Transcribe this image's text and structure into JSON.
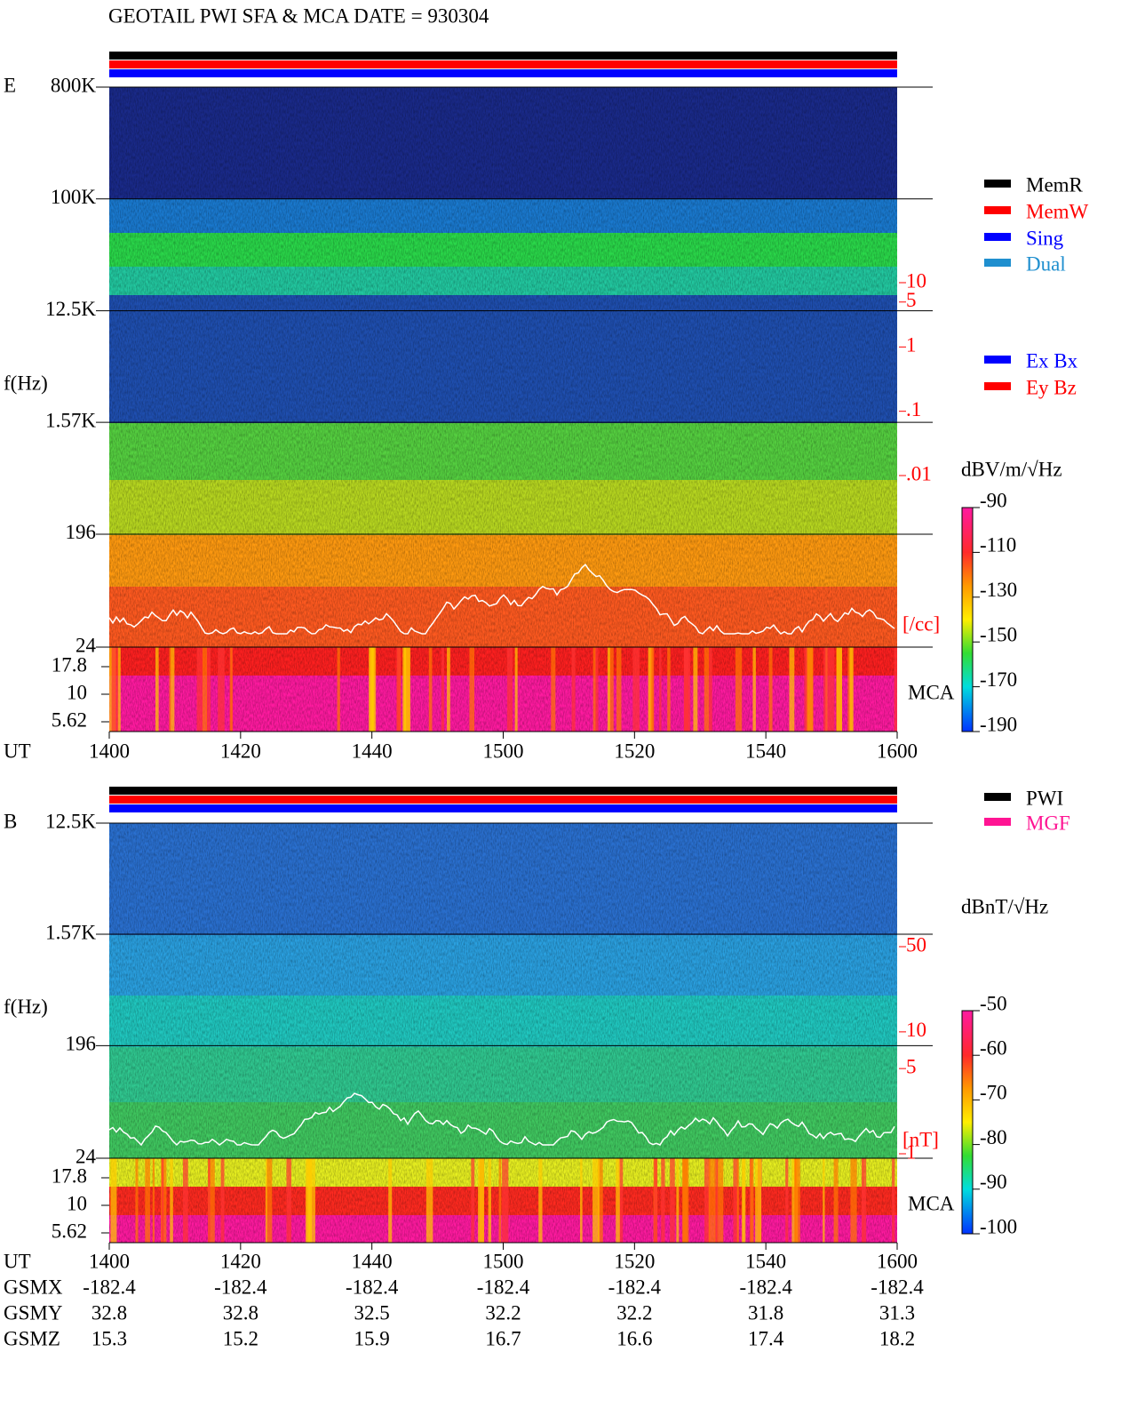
{
  "title": "GEOTAIL  PWI SFA & MCA   DATE = 930304",
  "chart_data": [
    {
      "type": "spectrogram",
      "panel_label": "E",
      "y_label": "f(Hz)",
      "x_label": "UT",
      "x": [
        "1400",
        "1420",
        "1440",
        "1500",
        "1520",
        "1540",
        "1600"
      ],
      "log_y": true,
      "ylim": [
        24,
        800000
      ],
      "yticks": [
        {
          "value": 800000,
          "label": "800K"
        },
        {
          "value": 100000,
          "label": "100K"
        },
        {
          "value": 12500,
          "label": "12.5K"
        },
        {
          "value": 1570,
          "label": "1.57K"
        },
        196,
        24
      ],
      "mca_label": "MCA",
      "mca_ticks": [
        17.8,
        10,
        5.62
      ],
      "density_lim": [
        0.01,
        10
      ],
      "density_ticks": [
        10,
        5,
        1,
        {
          "value": 0.1,
          "label": ".1"
        },
        {
          "value": 0.01,
          "label": ".01"
        }
      ],
      "density_unit": "[/cc]",
      "legend_mode": [
        {
          "name": "MemR",
          "color": "#000000"
        },
        {
          "name": "MemW",
          "color": "#ff0000"
        },
        {
          "name": "Sing",
          "color": "#0000ff"
        },
        {
          "name": "Dual",
          "color": "#1f8fcf"
        }
      ],
      "legend_antenna": [
        {
          "name": "Ex Bx",
          "color": "#0000ff"
        },
        {
          "name": "Ey Bz",
          "color": "#ff0000"
        }
      ],
      "colorbar": {
        "label": "dBV/m/√Hz",
        "lim": [
          -190,
          -90
        ],
        "ticks": [
          -90,
          -110,
          -130,
          -150,
          -170,
          -190
        ]
      }
    },
    {
      "type": "spectrogram",
      "panel_label": "B",
      "y_label": "f(Hz)",
      "x_label": "UT",
      "x": [
        "1400",
        "1420",
        "1440",
        "1500",
        "1520",
        "1540",
        "1600"
      ],
      "log_y": true,
      "ylim": [
        24,
        12500
      ],
      "yticks": [
        {
          "value": 12500,
          "label": "12.5K"
        },
        {
          "value": 1570,
          "label": "1.57K"
        },
        196,
        24
      ],
      "mca_label": "MCA",
      "mca_ticks": [
        17.8,
        10,
        5.62
      ],
      "density_lim": [
        1,
        50
      ],
      "density_ticks": [
        50,
        10,
        5,
        1
      ],
      "density_unit": "[nT]",
      "legend_mode": [
        {
          "name": "PWI",
          "color": "#000000"
        },
        {
          "name": "MGF",
          "color": "#ff1493"
        }
      ],
      "colorbar": {
        "label": "dBnT/√Hz",
        "lim": [
          -100,
          -50
        ],
        "ticks": [
          -50,
          -60,
          -70,
          -80,
          -90,
          -100
        ]
      }
    }
  ],
  "orbit": {
    "rows": [
      {
        "name": "GSMX",
        "values": [
          -182.4,
          -182.4,
          -182.4,
          -182.4,
          -182.4,
          -182.4,
          -182.4
        ]
      },
      {
        "name": "GSMY",
        "values": [
          32.8,
          32.8,
          32.5,
          32.2,
          32.2,
          31.8,
          31.3
        ]
      },
      {
        "name": "GSMZ",
        "values": [
          15.3,
          15.2,
          15.9,
          16.7,
          16.6,
          17.4,
          18.2
        ]
      }
    ]
  }
}
